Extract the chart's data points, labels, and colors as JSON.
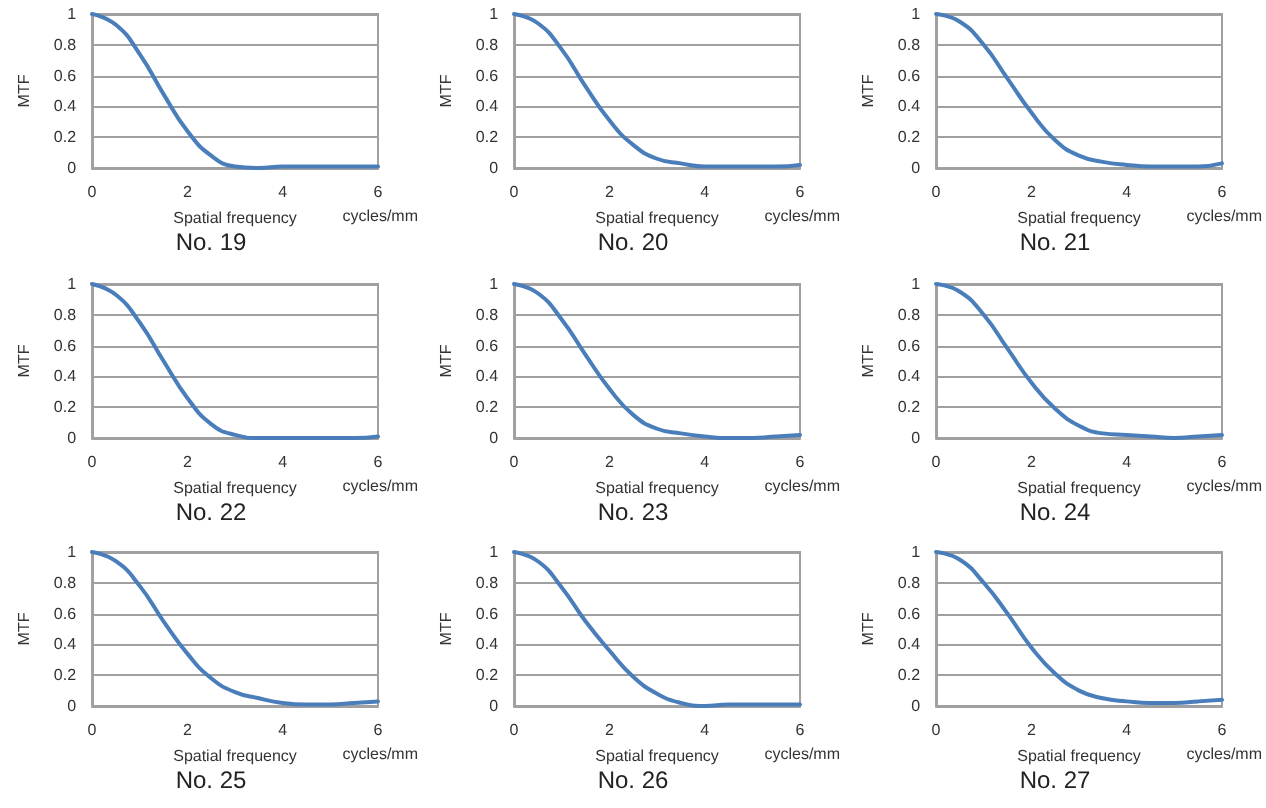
{
  "chart_data": [
    {
      "type": "line",
      "title": "No. 19",
      "xlabel": "Spatial frequency",
      "ylabel": "MTF",
      "annotations": [
        "cycles/mm"
      ],
      "x": [
        0,
        0.5,
        1,
        1.5,
        2,
        2.5,
        3,
        3.5,
        4,
        4.5,
        5,
        5.5,
        6
      ],
      "series": [
        {
          "color": "#4a7ebb",
          "values": [
            1,
            0.93,
            0.74,
            0.48,
            0.24,
            0.08,
            0.01,
            0,
            0.01,
            0.01,
            0.01,
            0.01,
            0.01
          ]
        }
      ],
      "xlim": [
        0,
        6
      ],
      "xticks": [
        0,
        2,
        4,
        6
      ],
      "ylim": [
        0,
        1
      ],
      "yticks": [
        0,
        0.2,
        0.4,
        0.6,
        0.8,
        1
      ],
      "grid": "y",
      "marker": "none"
    },
    {
      "type": "line",
      "title": "No. 20",
      "xlabel": "Spatial frequency",
      "ylabel": "MTF",
      "annotations": [
        "cycles/mm"
      ],
      "x": [
        0,
        0.5,
        1,
        1.5,
        2,
        2.5,
        3,
        3.5,
        4,
        4.5,
        5,
        5.5,
        6
      ],
      "series": [
        {
          "color": "#4a7ebb",
          "values": [
            1,
            0.94,
            0.77,
            0.53,
            0.31,
            0.15,
            0.06,
            0.03,
            0.01,
            0.01,
            0.01,
            0.01,
            0.02
          ]
        }
      ],
      "xlim": [
        0,
        6
      ],
      "xticks": [
        0,
        2,
        4,
        6
      ],
      "ylim": [
        0,
        1
      ],
      "yticks": [
        0,
        0.2,
        0.4,
        0.6,
        0.8,
        1
      ],
      "grid": "y",
      "marker": "none"
    },
    {
      "type": "line",
      "title": "No. 21",
      "xlabel": "Spatial frequency",
      "ylabel": "MTF",
      "annotations": [
        "cycles/mm"
      ],
      "x": [
        0,
        0.5,
        1,
        1.5,
        2,
        2.5,
        3,
        3.5,
        4,
        4.5,
        5,
        5.5,
        6
      ],
      "series": [
        {
          "color": "#4a7ebb",
          "values": [
            1,
            0.95,
            0.8,
            0.58,
            0.36,
            0.18,
            0.08,
            0.04,
            0.02,
            0.01,
            0.01,
            0.01,
            0.03
          ]
        }
      ],
      "xlim": [
        0,
        6
      ],
      "xticks": [
        0,
        2,
        4,
        6
      ],
      "ylim": [
        0,
        1
      ],
      "yticks": [
        0,
        0.2,
        0.4,
        0.6,
        0.8,
        1
      ],
      "grid": "y",
      "marker": "none"
    },
    {
      "type": "line",
      "title": "No. 22",
      "xlabel": "Spatial frequency",
      "ylabel": "MTF",
      "annotations": [
        "cycles/mm"
      ],
      "x": [
        0,
        0.5,
        1,
        1.5,
        2,
        2.5,
        3,
        3.5,
        4,
        4.5,
        5,
        5.5,
        6
      ],
      "series": [
        {
          "color": "#4a7ebb",
          "values": [
            1,
            0.93,
            0.75,
            0.5,
            0.26,
            0.09,
            0.02,
            0,
            0,
            0,
            0,
            0,
            0.01
          ]
        }
      ],
      "xlim": [
        0,
        6
      ],
      "xticks": [
        0,
        2,
        4,
        6
      ],
      "ylim": [
        0,
        1
      ],
      "yticks": [
        0,
        0.2,
        0.4,
        0.6,
        0.8,
        1
      ],
      "grid": "y",
      "marker": "none"
    },
    {
      "type": "line",
      "title": "No. 23",
      "xlabel": "Spatial frequency",
      "ylabel": "MTF",
      "annotations": [
        "cycles/mm"
      ],
      "x": [
        0,
        0.5,
        1,
        1.5,
        2,
        2.5,
        3,
        3.5,
        4,
        4.5,
        5,
        5.5,
        6
      ],
      "series": [
        {
          "color": "#4a7ebb",
          "values": [
            1,
            0.94,
            0.77,
            0.54,
            0.32,
            0.15,
            0.06,
            0.03,
            0.01,
            0,
            0,
            0.01,
            0.02
          ]
        }
      ],
      "xlim": [
        0,
        6
      ],
      "xticks": [
        0,
        2,
        4,
        6
      ],
      "ylim": [
        0,
        1
      ],
      "yticks": [
        0,
        0.2,
        0.4,
        0.6,
        0.8,
        1
      ],
      "grid": "y",
      "marker": "none"
    },
    {
      "type": "line",
      "title": "No. 24",
      "xlabel": "Spatial frequency",
      "ylabel": "MTF",
      "annotations": [
        "cycles/mm"
      ],
      "x": [
        0,
        0.5,
        1,
        1.5,
        2,
        2.5,
        3,
        3.5,
        4,
        4.5,
        5,
        5.5,
        6
      ],
      "series": [
        {
          "color": "#4a7ebb",
          "values": [
            1,
            0.95,
            0.8,
            0.58,
            0.36,
            0.19,
            0.08,
            0.03,
            0.02,
            0.01,
            0,
            0.01,
            0.02
          ]
        }
      ],
      "xlim": [
        0,
        6
      ],
      "xticks": [
        0,
        2,
        4,
        6
      ],
      "ylim": [
        0,
        1
      ],
      "yticks": [
        0,
        0.2,
        0.4,
        0.6,
        0.8,
        1
      ],
      "grid": "y",
      "marker": "none"
    },
    {
      "type": "line",
      "title": "No. 25",
      "xlabel": "Spatial frequency",
      "ylabel": "MTF",
      "annotations": [
        "cycles/mm"
      ],
      "x": [
        0,
        0.5,
        1,
        1.5,
        2,
        2.5,
        3,
        3.5,
        4,
        4.5,
        5,
        5.5,
        6
      ],
      "series": [
        {
          "color": "#4a7ebb",
          "values": [
            1,
            0.94,
            0.78,
            0.55,
            0.34,
            0.18,
            0.09,
            0.05,
            0.02,
            0.01,
            0.01,
            0.02,
            0.03
          ]
        }
      ],
      "xlim": [
        0,
        6
      ],
      "xticks": [
        0,
        2,
        4,
        6
      ],
      "ylim": [
        0,
        1
      ],
      "yticks": [
        0,
        0.2,
        0.4,
        0.6,
        0.8,
        1
      ],
      "grid": "y",
      "marker": "none"
    },
    {
      "type": "line",
      "title": "No. 26",
      "xlabel": "Spatial frequency",
      "ylabel": "MTF",
      "annotations": [
        "cycles/mm"
      ],
      "x": [
        0,
        0.5,
        1,
        1.5,
        2,
        2.5,
        3,
        3.5,
        4,
        4.5,
        5,
        5.5,
        6
      ],
      "series": [
        {
          "color": "#4a7ebb",
          "values": [
            1,
            0.94,
            0.77,
            0.55,
            0.36,
            0.19,
            0.08,
            0.02,
            0,
            0.01,
            0.01,
            0.01,
            0.01
          ]
        }
      ],
      "xlim": [
        0,
        6
      ],
      "xticks": [
        0,
        2,
        4,
        6
      ],
      "ylim": [
        0,
        1
      ],
      "yticks": [
        0,
        0.2,
        0.4,
        0.6,
        0.8,
        1
      ],
      "grid": "y",
      "marker": "none"
    },
    {
      "type": "line",
      "title": "No. 27",
      "xlabel": "Spatial frequency",
      "ylabel": "MTF",
      "annotations": [
        "cycles/mm"
      ],
      "x": [
        0,
        0.5,
        1,
        1.5,
        2,
        2.5,
        3,
        3.5,
        4,
        4.5,
        5,
        5.5,
        6
      ],
      "series": [
        {
          "color": "#4a7ebb",
          "values": [
            1,
            0.95,
            0.8,
            0.6,
            0.38,
            0.21,
            0.1,
            0.05,
            0.03,
            0.02,
            0.02,
            0.03,
            0.04
          ]
        }
      ],
      "xlim": [
        0,
        6
      ],
      "xticks": [
        0,
        2,
        4,
        6
      ],
      "ylim": [
        0,
        1
      ],
      "yticks": [
        0,
        0.2,
        0.4,
        0.6,
        0.8,
        1
      ],
      "grid": "y",
      "marker": "none"
    }
  ]
}
